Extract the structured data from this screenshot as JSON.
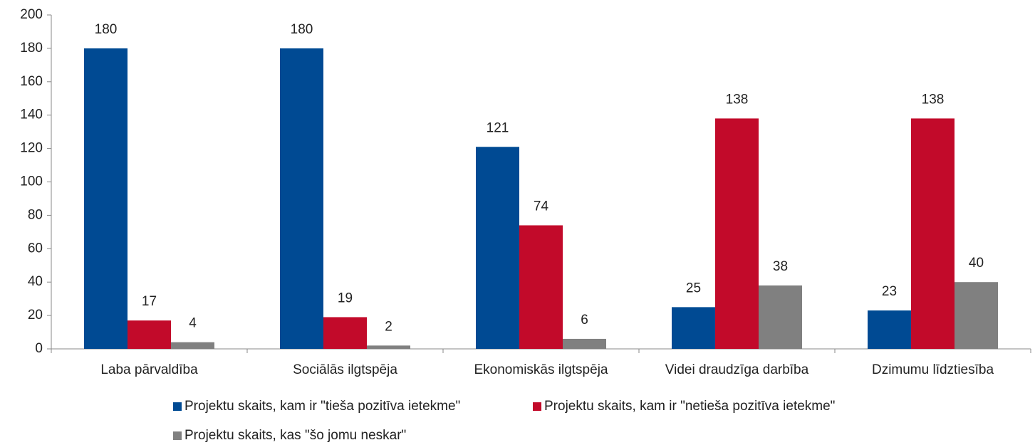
{
  "chart_data": {
    "type": "bar",
    "categories": [
      "Laba pārvaldība",
      "Sociālās ilgtspēja",
      "Ekonomiskās ilgtspēja",
      "Videi draudzīga darbība",
      "Dzimumu līdztiesība"
    ],
    "series": [
      {
        "name": "Projektu skaits, kam ir \"tieša pozitīva ietekme\"",
        "color": "#004a93",
        "values": [
          180,
          180,
          121,
          25,
          23
        ]
      },
      {
        "name": "Projektu skaits, kam ir \"netieša pozitīva ietekme\"",
        "color": "#c20a2a",
        "values": [
          17,
          19,
          74,
          138,
          138
        ]
      },
      {
        "name": "Projektu skaits, kas \"šo jomu neskar\"",
        "color": "#808080",
        "values": [
          4,
          2,
          6,
          38,
          40
        ]
      }
    ],
    "ylim": [
      0,
      200
    ],
    "yticks": [
      0,
      20,
      40,
      60,
      80,
      100,
      120,
      140,
      160,
      180,
      200
    ],
    "grid": false,
    "legend": "bottom",
    "data_labels": true
  }
}
